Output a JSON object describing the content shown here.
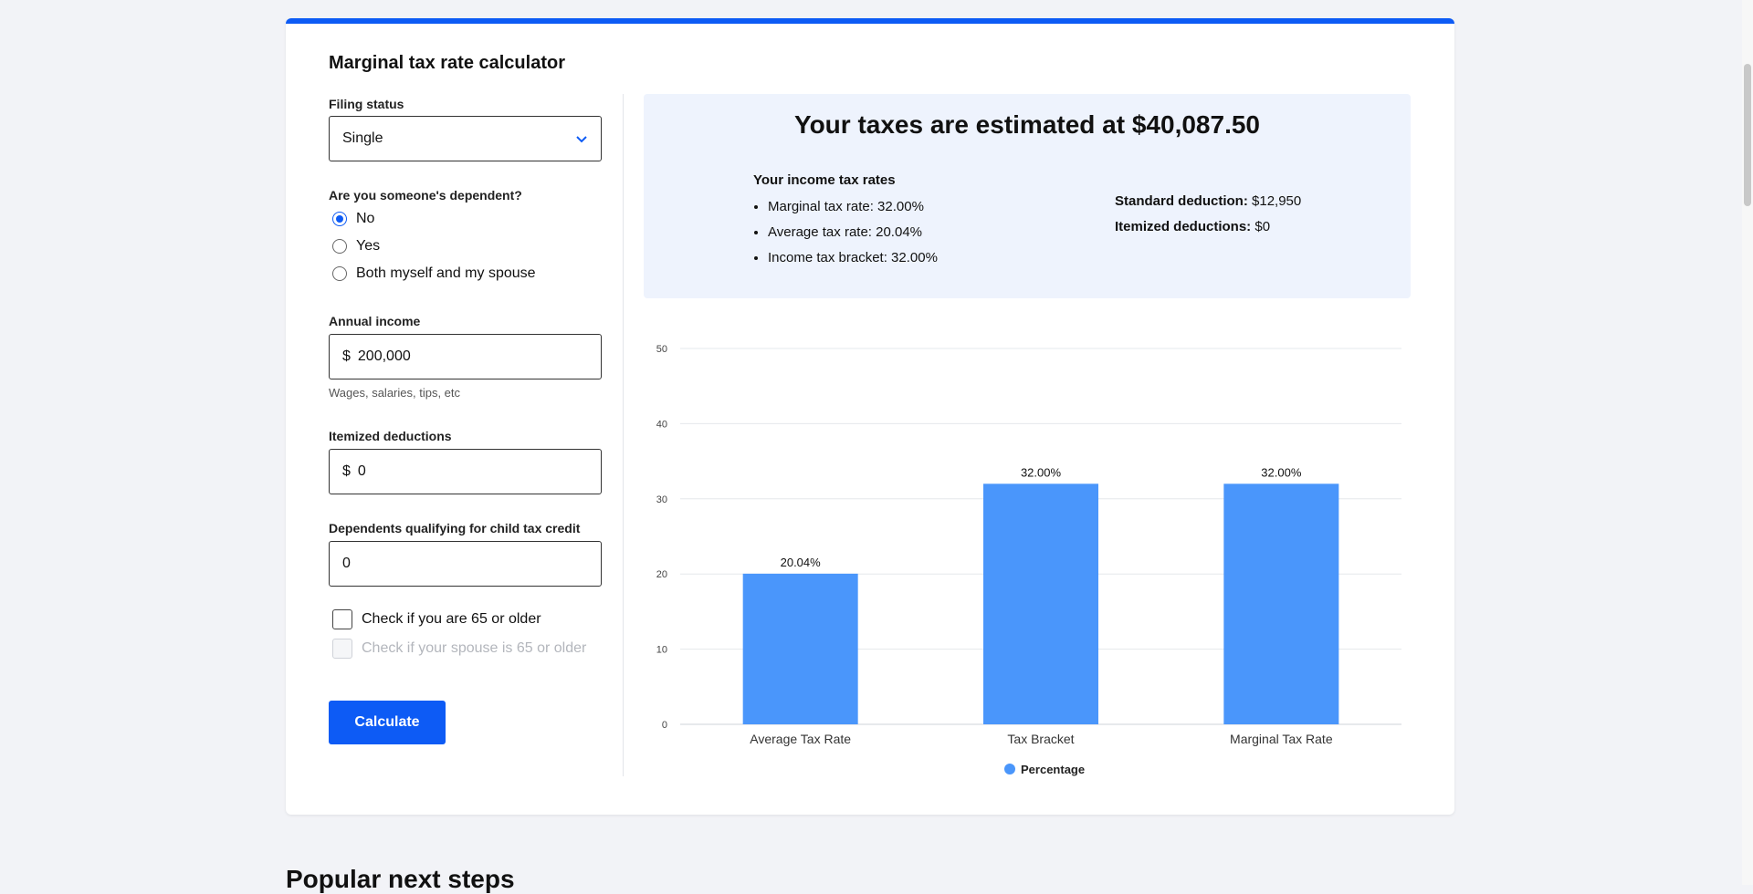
{
  "calculator": {
    "title": "Marginal tax rate calculator",
    "filing_status": {
      "label": "Filing status",
      "value": "Single",
      "icon": "chevron-down-icon"
    },
    "dependent": {
      "label": "Are you someone's dependent?",
      "options": [
        "No",
        "Yes",
        "Both myself and my spouse"
      ],
      "selected": "No"
    },
    "annual_income": {
      "label": "Annual income",
      "prefix": "$",
      "value": "200,000",
      "hint": "Wages, salaries, tips, etc"
    },
    "itemized_deductions": {
      "label": "Itemized deductions",
      "prefix": "$",
      "value": "0"
    },
    "dependents_child_credit": {
      "label": "Dependents qualifying for child tax credit",
      "value": "0"
    },
    "checks": {
      "age_65": {
        "label": "Check if you are 65 or older",
        "checked": false
      },
      "spouse_65": {
        "label": "Check if your spouse is 65 or older",
        "checked": false,
        "disabled": true
      }
    },
    "calculate_label": "Calculate"
  },
  "results": {
    "headline": "Your taxes are estimated at $40,087.50",
    "rates_title": "Your income tax rates",
    "rates": [
      "Marginal tax rate: 32.00%",
      "Average tax rate: 20.04%",
      "Income tax bracket: 32.00%"
    ],
    "standard_deduction_label": "Standard deduction:",
    "standard_deduction_value": "$12,950",
    "itemized_deductions_label": "Itemized deductions:",
    "itemized_deductions_value": "$0"
  },
  "chart_data": {
    "type": "bar",
    "categories": [
      "Average Tax Rate",
      "Tax Bracket",
      "Marginal Tax Rate"
    ],
    "series": [
      {
        "name": "Percentage",
        "values": [
          20.04,
          32.0,
          32.0
        ],
        "labels": [
          "20.04%",
          "32.00%",
          "32.00%"
        ]
      }
    ],
    "ylim": [
      0,
      50
    ],
    "yticks": [
      0,
      10,
      20,
      30,
      40,
      50
    ],
    "grid": true,
    "legend": "bottom-center",
    "color": "#4a96fb"
  },
  "footer": {
    "next_steps_title": "Popular next steps"
  },
  "colors": {
    "accent": "#0d5bf5",
    "panel": "#eef3fd",
    "bar": "#4a96fb"
  }
}
